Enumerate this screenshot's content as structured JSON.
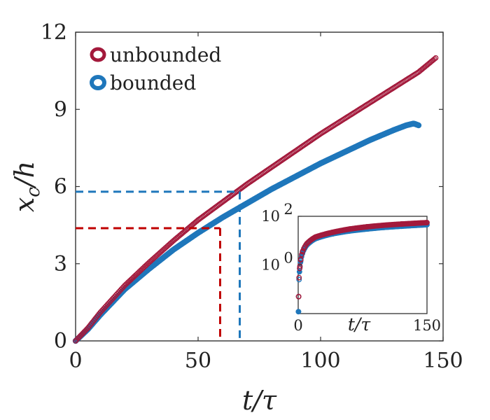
{
  "chart_data": [
    {
      "type": "scatter",
      "xlabel": "t/τ",
      "ylabel": "x_c/h",
      "xlim": [
        0,
        150
      ],
      "ylim": [
        0,
        12
      ],
      "xticks": [
        0,
        50,
        100,
        150
      ],
      "yticks": [
        0,
        3,
        6,
        9,
        12
      ],
      "legend_position": "top-left",
      "grid": false,
      "series": [
        {
          "name": "unbounded",
          "color": "#a3193b",
          "marker": "open-circle",
          "x": [
            0,
            5,
            10,
            20,
            30,
            40,
            50,
            60,
            70,
            80,
            90,
            100,
            110,
            120,
            130,
            140,
            147
          ],
          "y": [
            0,
            0.5,
            1.1,
            2.15,
            3.05,
            3.9,
            4.7,
            5.4,
            6.1,
            6.75,
            7.4,
            8.05,
            8.65,
            9.25,
            9.85,
            10.45,
            11.0
          ]
        },
        {
          "name": "bounded",
          "color": "#1f77bb",
          "marker": "filled-circle",
          "x": [
            0,
            5,
            10,
            20,
            30,
            40,
            50,
            60,
            70,
            80,
            90,
            100,
            110,
            120,
            130,
            135,
            138,
            140
          ],
          "y": [
            0,
            0.45,
            1.0,
            2.0,
            2.8,
            3.55,
            4.2,
            4.8,
            5.35,
            5.9,
            6.4,
            6.9,
            7.35,
            7.8,
            8.2,
            8.38,
            8.45,
            8.38
          ]
        }
      ],
      "annotations": [
        {
          "type": "dashed-guide",
          "color": "#1f77bb",
          "x": 67,
          "y": 5.8
        },
        {
          "type": "dashed-guide",
          "color": "#c00000",
          "x": 59,
          "y": 4.38
        }
      ]
    },
    {
      "type": "scatter",
      "role": "inset",
      "xlabel": "t/τ",
      "xlim": [
        0,
        150
      ],
      "yscale": "log",
      "ylim": [
        0.01,
        100
      ],
      "xticks": [
        "0",
        "150"
      ],
      "yticks": [
        {
          "value": 1,
          "base": "10",
          "exp": "0"
        },
        {
          "value": 100,
          "base": "10",
          "exp": "2"
        }
      ],
      "series": [
        {
          "name": "unbounded",
          "color": "#a3193b",
          "x": [
            0.5,
            1,
            2,
            3,
            5,
            10,
            20,
            40,
            60,
            80,
            100,
            120,
            150
          ],
          "y": [
            0.05,
            0.3,
            0.9,
            1.7,
            3.5,
            7.5,
            14,
            22,
            30,
            37,
            43,
            48,
            55
          ]
        },
        {
          "name": "bounded",
          "color": "#1f77bb",
          "x": [
            0.3,
            0.5,
            1,
            2,
            3,
            5,
            10,
            20,
            40,
            60,
            80,
            100,
            120,
            150
          ],
          "y": [
            0.012,
            0.05,
            0.25,
            0.8,
            1.5,
            3.0,
            6.5,
            12,
            19,
            25,
            30,
            35,
            39,
            45
          ]
        }
      ]
    }
  ]
}
